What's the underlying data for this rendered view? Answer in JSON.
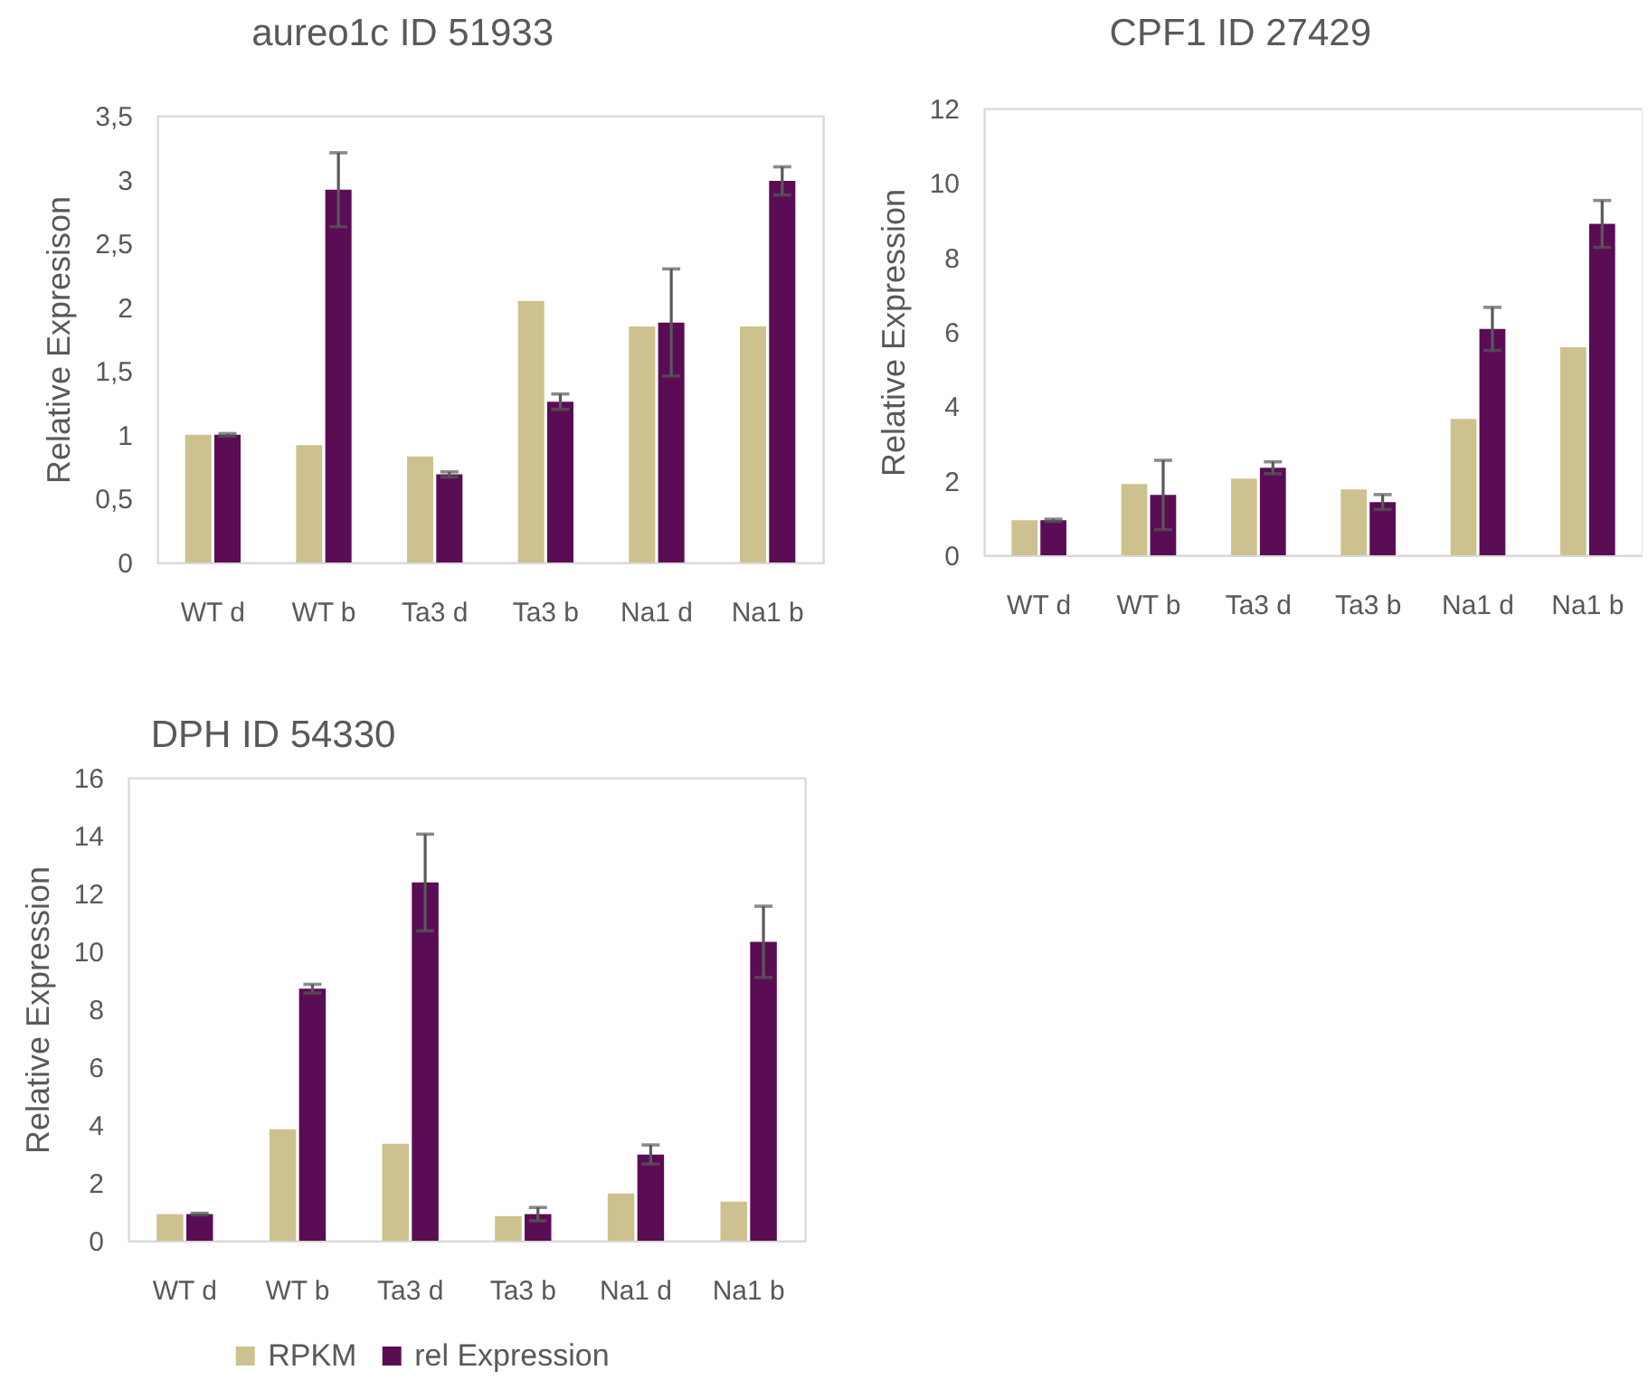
{
  "chart_data": [
    {
      "type": "bar",
      "title": "aureo1c ID 51933",
      "ylabel": "Relative Expresison",
      "categories": [
        "WT d",
        "WT b",
        "Ta3 d",
        "Ta3 b",
        "Na1 d",
        "Na1 b"
      ],
      "series": [
        {
          "color": "#cdc28f",
          "values": [
            1.0,
            0.92,
            0.83,
            2.05,
            1.85,
            1.85
          ]
        },
        {
          "color": "#5a0c55",
          "values": [
            1.0,
            2.92,
            0.69,
            1.26,
            1.88,
            2.99
          ],
          "errors": [
            0.01,
            0.29,
            0.02,
            0.06,
            0.42,
            0.11
          ]
        }
      ],
      "ylim": [
        0,
        3.5
      ],
      "yticks": [
        0,
        {
          "value": 0.5,
          "label": "0,5"
        },
        1,
        {
          "value": 1.5,
          "label": "1,5"
        },
        2,
        {
          "value": 2.5,
          "label": "2,5"
        },
        3,
        {
          "value": 3.5,
          "label": "3,5"
        }
      ],
      "grid": false
    },
    {
      "type": "bar",
      "title": "CPF1 ID 27429",
      "ylabel": "Relative Expression",
      "categories": [
        "WT d",
        "WT b",
        "Ta3 d",
        "Ta3 b",
        "Na1 d",
        "Na1 b"
      ],
      "series": [
        {
          "color": "#cdc28f",
          "values": [
            0.94,
            1.91,
            2.06,
            1.77,
            3.66,
            5.59
          ]
        },
        {
          "color": "#5a0c55",
          "values": [
            0.94,
            1.62,
            2.35,
            1.43,
            6.08,
            8.9
          ],
          "errors": [
            0.03,
            0.93,
            0.16,
            0.2,
            0.58,
            0.63
          ]
        }
      ],
      "ylim": [
        0,
        12
      ],
      "yticks": [
        0,
        2,
        4,
        6,
        8,
        10,
        12
      ],
      "grid": false
    },
    {
      "type": "bar",
      "title": "DPH ID 54330",
      "ylabel": "Relative Expression",
      "categories": [
        "WT d",
        "WT b",
        "Ta3 d",
        "Ta3 b",
        "Na1 d",
        "Na1 b"
      ],
      "series": [
        {
          "name": "RPKM",
          "color": "#cdc28f",
          "values": [
            0.92,
            3.85,
            3.35,
            0.85,
            1.63,
            1.35
          ]
        },
        {
          "name": "rel Expression",
          "color": "#5a0c55",
          "values": [
            0.92,
            8.71,
            12.38,
            0.92,
            2.98,
            10.33
          ],
          "errors": [
            0.03,
            0.15,
            1.67,
            0.23,
            0.33,
            1.23
          ]
        }
      ],
      "ylim": [
        0,
        16
      ],
      "yticks": [
        0,
        2,
        4,
        6,
        8,
        10,
        12,
        14,
        16
      ],
      "grid": false,
      "legend": "bottom"
    }
  ]
}
